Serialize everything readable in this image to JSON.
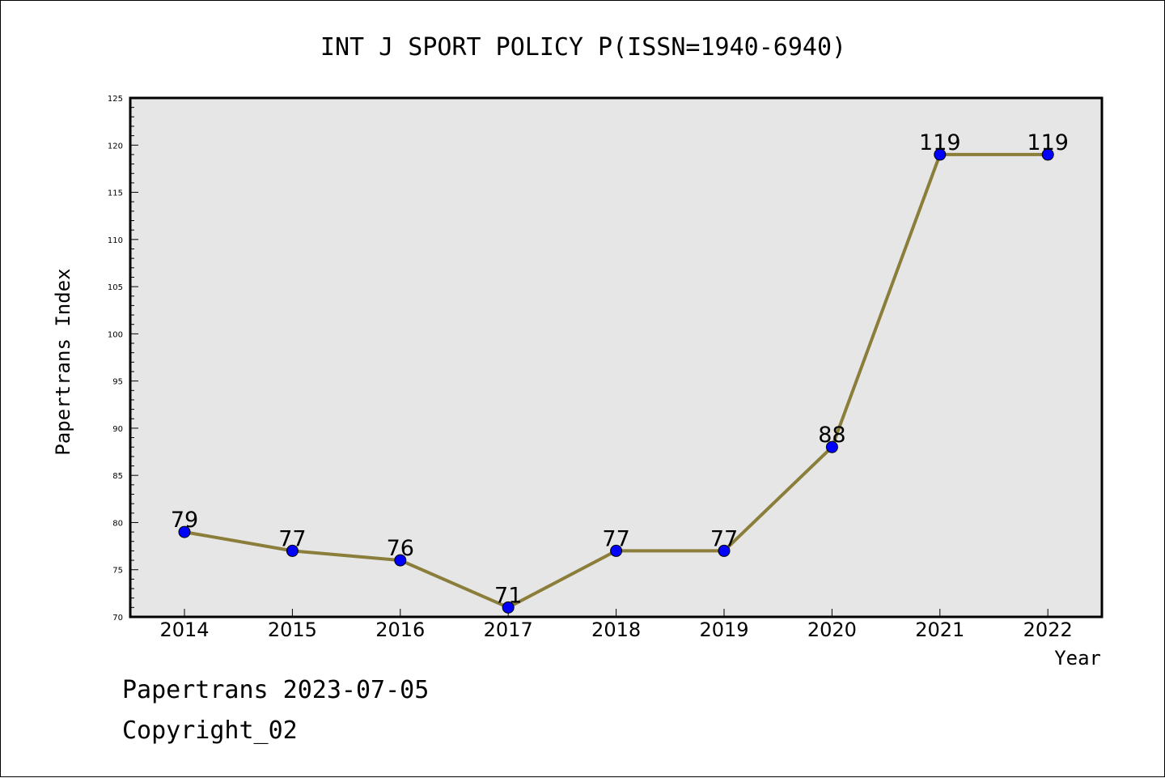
{
  "chart_data": {
    "type": "line",
    "title": "INT J SPORT POLICY P(ISSN=1940-6940)",
    "xlabel": "Year",
    "ylabel": "Papertrans Index",
    "categories": [
      "2014",
      "2015",
      "2016",
      "2017",
      "2018",
      "2019",
      "2020",
      "2021",
      "2022"
    ],
    "values": [
      79,
      77,
      76,
      71,
      77,
      77,
      88,
      119,
      119
    ],
    "data_labels": [
      "79",
      "77",
      "76",
      "71",
      "77",
      "77",
      "88",
      "119",
      "119"
    ],
    "ylim": [
      70,
      125
    ],
    "y_ticks": [
      70,
      75,
      80,
      85,
      90,
      95,
      100,
      105,
      110,
      115,
      120,
      125
    ],
    "y_minor_step": 1,
    "grid": false,
    "legend": "none",
    "colors": {
      "line": "#8B7D3A",
      "marker": "#0000FF",
      "plot_background": "#E6E6E6",
      "axis": "#000000"
    }
  },
  "footer": {
    "date_text": "Papertrans 2023-07-05",
    "copyright_text": "Copyright_02"
  }
}
